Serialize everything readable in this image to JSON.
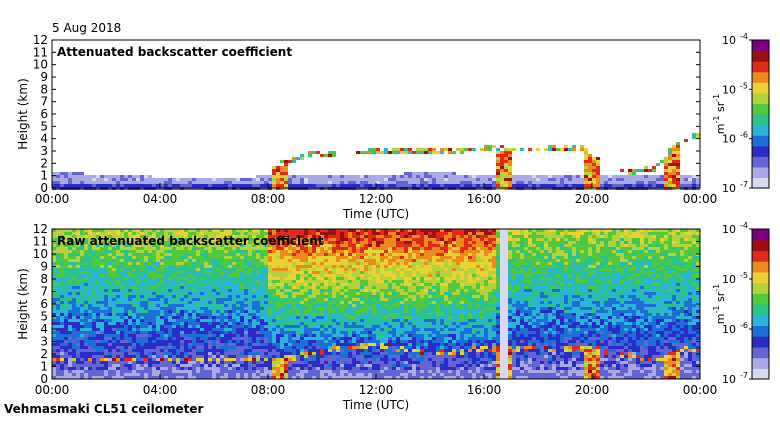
{
  "date": "5 Aug 2018",
  "footer": "Vehmasmaki CL51 ceilometer",
  "colors": {
    "colormap": [
      "#d8d8ee",
      "#a9a9e6",
      "#6464d2",
      "#2b2bc8",
      "#1c6fd6",
      "#29b4d8",
      "#2cc38a",
      "#52c83c",
      "#b4d23a",
      "#ebd234",
      "#ec8a1c",
      "#e02a1a",
      "#9a1010",
      "#7b0080"
    ]
  },
  "chart_data": [
    {
      "type": "heatmap",
      "title": "Attenuated backscatter coefficient",
      "xlabel": "Time (UTC)",
      "ylabel": "Height (km)",
      "x_ticks": [
        "00:00",
        "04:00",
        "08:00",
        "12:00",
        "16:00",
        "20:00",
        "00:00"
      ],
      "y_ticks": [
        "0",
        "1",
        "2",
        "3",
        "4",
        "5",
        "6",
        "7",
        "8",
        "9",
        "10",
        "11",
        "12"
      ],
      "xlim_hours": [
        0,
        24
      ],
      "ylim_km": [
        0,
        12
      ],
      "colorbar": {
        "labels": [
          "10",
          "10",
          "10",
          "10"
        ],
        "exponents": [
          "-4",
          "-5",
          "-6",
          "-7"
        ],
        "unit": "m",
        "unit_exp": "-1",
        "unit2": "sr",
        "unit2_exp": "-1",
        "range_log10": [
          -7,
          -4
        ]
      },
      "features": {
        "aerosol_layer_top_km": [
          [
            0,
            1.3
          ],
          [
            3,
            1.0
          ],
          [
            6,
            0.7
          ],
          [
            8,
            1.0
          ],
          [
            10,
            1.1
          ],
          [
            14,
            1.2
          ],
          [
            18,
            1.1
          ],
          [
            22,
            1.0
          ],
          [
            24,
            1.0
          ]
        ],
        "cloud_base_km": [
          [
            8.6,
            2.0
          ],
          [
            9.5,
            2.7
          ],
          [
            11,
            2.8
          ],
          [
            12.5,
            3.0
          ],
          [
            14,
            3.0
          ],
          [
            15.5,
            3.1
          ],
          [
            16.5,
            3.2
          ],
          [
            18,
            3.1
          ],
          [
            19.5,
            3.3
          ],
          [
            21.3,
            1.3
          ],
          [
            22.3,
            1.6
          ],
          [
            23.2,
            3.6
          ],
          [
            23.8,
            4.2
          ]
        ],
        "precipitation_hours": [
          8.5,
          16.7,
          20.0,
          23.0
        ]
      }
    },
    {
      "type": "heatmap",
      "title": "Raw attenuated backscatter coefficient",
      "xlabel": "Time (UTC)",
      "ylabel": "Height (km)",
      "x_ticks": [
        "00:00",
        "04:00",
        "08:00",
        "12:00",
        "16:00",
        "20:00",
        "00:00"
      ],
      "y_ticks": [
        "0",
        "1",
        "2",
        "3",
        "4",
        "5",
        "6",
        "7",
        "8",
        "9",
        "10",
        "11",
        "12"
      ],
      "xlim_hours": [
        0,
        24
      ],
      "ylim_km": [
        0,
        12
      ],
      "colorbar": {
        "labels": [
          "10",
          "10",
          "10",
          "10"
        ],
        "exponents": [
          "-4",
          "-5",
          "-6",
          "-7"
        ],
        "unit": "m",
        "unit_exp": "-1",
        "unit2": "sr",
        "unit2_exp": "-1",
        "range_log10": [
          -7,
          -4
        ]
      },
      "features": {
        "noisy_daytime_hours": [
          8.0,
          16.5
        ],
        "white_gap_hour": 16.7,
        "cloud_base_km": [
          [
            8.6,
            1.6
          ],
          [
            10,
            2.2
          ],
          [
            12,
            2.8
          ],
          [
            14,
            2.0
          ],
          [
            16,
            2.4
          ],
          [
            18,
            2.5
          ],
          [
            20,
            2.4
          ],
          [
            22.5,
            1.5
          ],
          [
            23.5,
            2.4
          ]
        ],
        "precipitation_hours": [
          8.5,
          16.7,
          20.0,
          23.0
        ]
      }
    }
  ]
}
